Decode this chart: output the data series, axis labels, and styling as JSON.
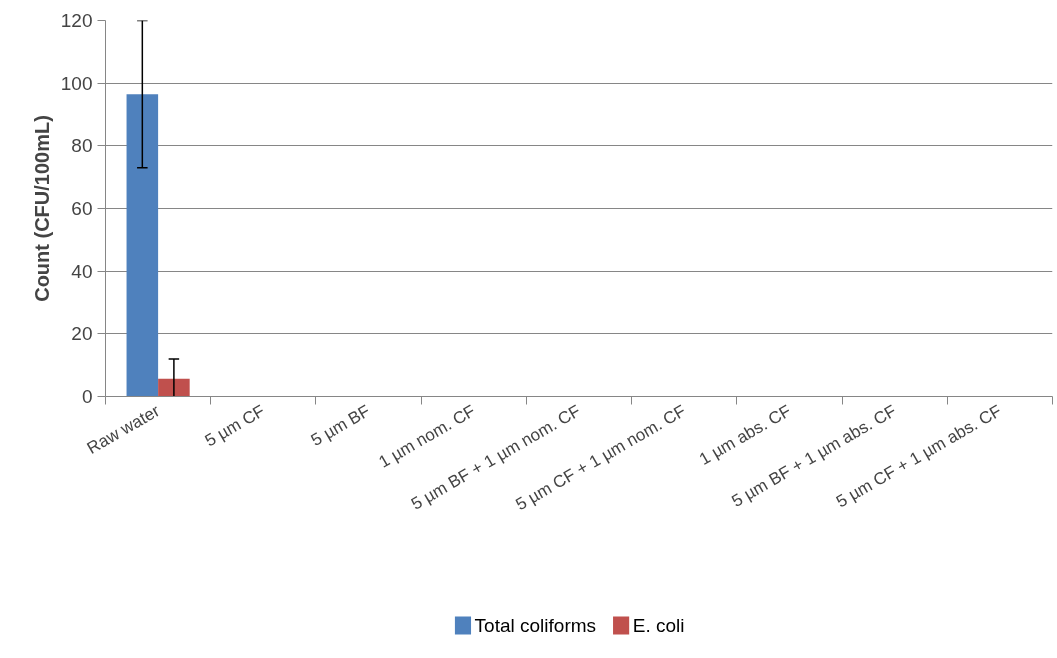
{
  "chart_data": {
    "type": "bar",
    "ylabel": "Count (CFU/100mL)",
    "categories": [
      "Raw water",
      "5 µm CF",
      "5 µm BF",
      "1 µm nom. CF",
      "5 µm BF + 1 µm nom. CF",
      "5 µm CF + 1 µm nom. CF",
      "1 µm abs. CF",
      "5 µm BF + 1 µm abs. CF",
      "5 µm CF + 1 µm abs. CF"
    ],
    "series": [
      {
        "name": "Total coliforms",
        "color": "#4f81bd",
        "values": [
          96.5,
          0,
          0,
          0,
          0,
          0,
          0,
          0,
          0
        ],
        "errors": [
          23.5,
          null,
          null,
          null,
          null,
          null,
          null,
          null,
          null
        ]
      },
      {
        "name": "E. coli",
        "color": "#c0504d",
        "values": [
          5.7,
          0,
          0,
          0,
          0,
          0,
          0,
          0,
          0
        ],
        "errors": [
          6.3,
          null,
          null,
          null,
          null,
          null,
          null,
          null,
          null
        ]
      }
    ],
    "ylim": [
      0,
      120
    ],
    "yticks": [
      0,
      20,
      40,
      60,
      80,
      100,
      120
    ],
    "grid": "y",
    "legend": "bottom"
  }
}
